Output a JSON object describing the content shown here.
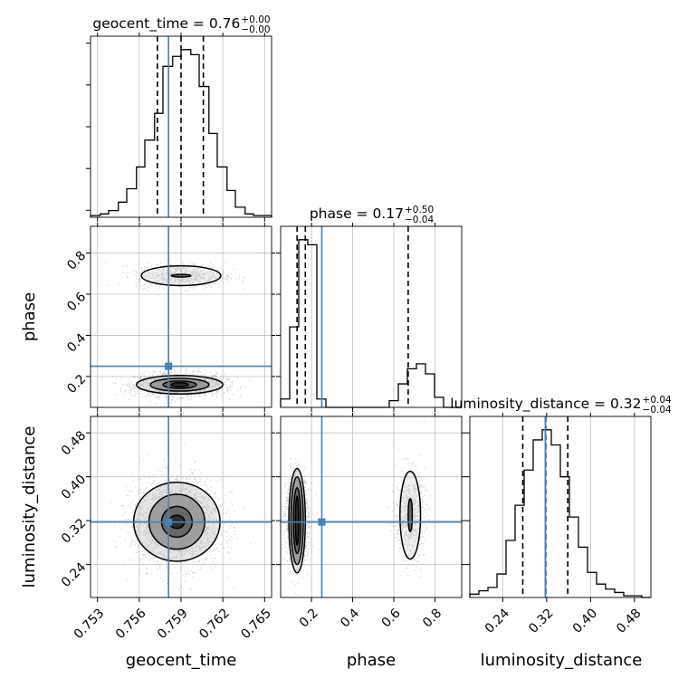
{
  "chart_data": {
    "type": "corner",
    "colors": {
      "truth": "#4682b4",
      "hist": "#000000",
      "grid": "#c0c0c0",
      "scatter": "#9a9a9a"
    },
    "parameters": [
      {
        "name": "geocent_time",
        "axis_label": "geocent_time",
        "title_main": "geocent_time = 0.76",
        "title_plus": "+0.00",
        "title_minus": "−0.00",
        "range": [
          0.7525,
          0.7655
        ],
        "ticks": [
          0.753,
          0.756,
          0.759,
          0.762,
          0.765
        ],
        "tick_labels": [
          "0.753",
          "0.756",
          "0.759",
          "0.762",
          "0.765"
        ],
        "truth": 0.7581,
        "quantiles": [
          0.7573,
          0.759,
          0.7606
        ],
        "hist_bins": [
          0.7525,
          0.7532,
          0.7538,
          0.7545,
          0.7551,
          0.7558,
          0.7564,
          0.7571,
          0.7577,
          0.7584,
          0.759,
          0.7597,
          0.7603,
          0.761,
          0.7616,
          0.7623,
          0.7629,
          0.7636,
          0.7642,
          0.7649,
          0.7655
        ],
        "hist_counts": [
          0.01,
          0.02,
          0.04,
          0.09,
          0.17,
          0.3,
          0.46,
          0.62,
          0.9,
          0.96,
          1.0,
          0.97,
          0.78,
          0.5,
          0.3,
          0.16,
          0.06,
          0.02,
          0.01,
          0.01
        ],
        "hist_max": 1.08
      },
      {
        "name": "phase",
        "axis_label": "phase",
        "title_main": "phase = 0.17",
        "title_plus": "+0.50",
        "title_minus": "−0.04",
        "range": [
          0.05,
          0.93
        ],
        "ticks": [
          0.2,
          0.4,
          0.6,
          0.8
        ],
        "tick_labels": [
          "0.2",
          "0.4",
          "0.6",
          "0.8"
        ],
        "truth": 0.25,
        "quantiles": [
          0.13,
          0.17,
          0.67
        ],
        "hist_bins": [
          0.05,
          0.094,
          0.138,
          0.182,
          0.226,
          0.27,
          0.314,
          0.358,
          0.402,
          0.446,
          0.49,
          0.534,
          0.578,
          0.622,
          0.666,
          0.71,
          0.754,
          0.798,
          0.842,
          0.886,
          0.93
        ],
        "hist_counts": [
          0.05,
          0.48,
          1.0,
          0.97,
          0.05,
          0.0,
          0.0,
          0.0,
          0.0,
          0.0,
          0.0,
          0.0,
          0.04,
          0.14,
          0.23,
          0.26,
          0.2,
          0.06,
          0.0,
          0.0
        ],
        "hist_max": 1.08
      },
      {
        "name": "luminosity_distance",
        "axis_label": "luminosity_distance",
        "title_main": "luminosity_distance = 0.32",
        "title_plus": "+0.04",
        "title_minus": "−0.04",
        "range": [
          0.18,
          0.51
        ],
        "ticks": [
          0.24,
          0.32,
          0.4,
          0.48
        ],
        "tick_labels": [
          "0.24",
          "0.32",
          "0.40",
          "0.48"
        ],
        "truth": 0.3175,
        "quantiles": [
          0.2765,
          0.318,
          0.3585
        ],
        "hist_bins": [
          0.18,
          0.1965,
          0.213,
          0.2295,
          0.246,
          0.2625,
          0.279,
          0.2955,
          0.312,
          0.3285,
          0.345,
          0.3615,
          0.378,
          0.3945,
          0.411,
          0.4275,
          0.444,
          0.4605,
          0.477,
          0.4935,
          0.51
        ],
        "hist_counts": [
          0.02,
          0.04,
          0.06,
          0.14,
          0.34,
          0.55,
          0.76,
          0.94,
          1.0,
          0.91,
          0.72,
          0.48,
          0.3,
          0.15,
          0.08,
          0.05,
          0.03,
          0.01,
          0.01,
          0.0
        ],
        "hist_max": 1.08
      }
    ],
    "pairs": [
      {
        "x": "geocent_time",
        "y": "phase",
        "modes": [
          {
            "cx": 0.7589,
            "cy": 0.16,
            "sx": 0.0016,
            "sy": 0.028,
            "n": 1500,
            "levels": [
              [
                0.00062,
                0.01
              ],
              [
                0.0012,
                0.018
              ],
              [
                0.0021,
                0.031
              ],
              [
                0.0031,
                0.045
              ]
            ]
          },
          {
            "cx": 0.759,
            "cy": 0.69,
            "sx": 0.0016,
            "sy": 0.03,
            "n": 650,
            "levels": [
              [
                0.0007,
                0.0065
              ],
              [
                0.00285,
                0.048
              ]
            ]
          }
        ]
      },
      {
        "x": "geocent_time",
        "y": "luminosity_distance",
        "modes": [
          {
            "cx": 0.7587,
            "cy": 0.318,
            "sx": 0.0016,
            "sy": 0.04,
            "n": 2000,
            "levels": [
              [
                0.00055,
                0.012
              ],
              [
                0.0011,
                0.028
              ],
              [
                0.002,
                0.05
              ],
              [
                0.0031,
                0.072
              ]
            ]
          }
        ]
      },
      {
        "x": "phase",
        "y": "luminosity_distance",
        "modes": [
          {
            "cx": 0.13,
            "cy": 0.32,
            "sx": 0.028,
            "sy": 0.04,
            "n": 1400,
            "levels": [
              [
                0.008,
                0.045
              ],
              [
                0.018,
                0.06
              ],
              [
                0.03,
                0.08
              ],
              [
                0.04,
                0.095
              ]
            ]
          },
          {
            "cx": 0.68,
            "cy": 0.33,
            "sx": 0.035,
            "sy": 0.04,
            "n": 700,
            "levels": [
              [
                0.01,
                0.03
              ],
              [
                0.05,
                0.08
              ]
            ]
          }
        ]
      }
    ]
  }
}
